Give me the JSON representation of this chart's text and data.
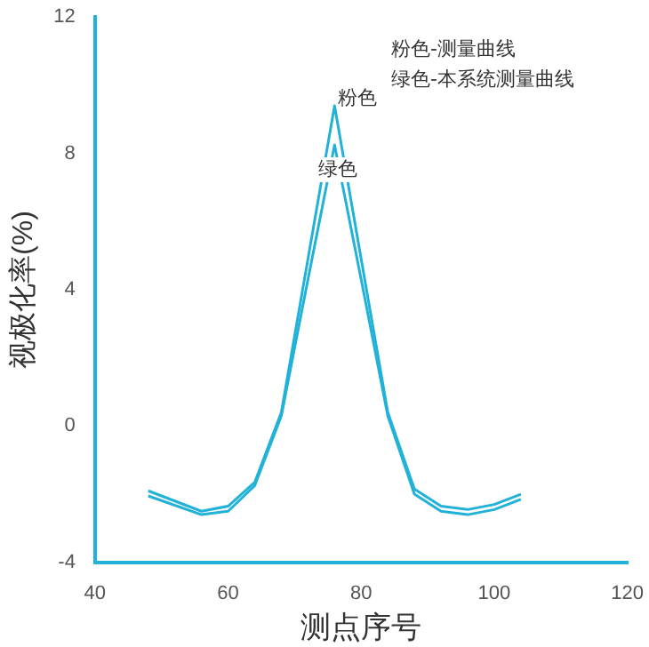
{
  "chart_data": {
    "type": "line",
    "xlabel": "测点序号",
    "ylabel": "视极化率(%)",
    "x": [
      48,
      56,
      60,
      64,
      68,
      72,
      76,
      80,
      84,
      88,
      92,
      96,
      100,
      104
    ],
    "series": [
      {
        "name": "粉色",
        "color": "#22b2d8",
        "values": [
          -1.9,
          -2.5,
          -2.35,
          -1.65,
          0.4,
          4.9,
          9.4,
          4.9,
          0.4,
          -1.85,
          -2.35,
          -2.45,
          -2.3,
          -2.0
        ]
      },
      {
        "name": "绿色",
        "color": "#22b2d8",
        "values": [
          -2.05,
          -2.6,
          -2.5,
          -1.75,
          0.3,
          4.3,
          8.25,
          4.3,
          0.3,
          -2.0,
          -2.5,
          -2.6,
          -2.45,
          -2.15
        ]
      }
    ],
    "xlim": [
      40,
      120
    ],
    "xticks": [
      40,
      60,
      80,
      100,
      120
    ],
    "ylim": [
      -4,
      12
    ],
    "yticks": [
      -4,
      0,
      4,
      8,
      12
    ],
    "grid": false,
    "legend": false,
    "marker": "none",
    "line_style": "solid",
    "annotations": [
      "粉色-测量曲线",
      "绿色-本系统测量曲线"
    ]
  }
}
